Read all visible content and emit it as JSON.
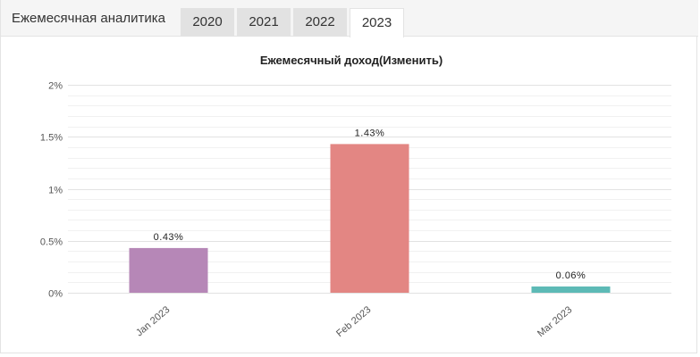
{
  "tabs": {
    "title": "Ежемесячная аналитика",
    "items": [
      {
        "label": "2020",
        "active": false
      },
      {
        "label": "2021",
        "active": false
      },
      {
        "label": "2022",
        "active": false
      },
      {
        "label": "2023",
        "active": true
      }
    ]
  },
  "chart_data": {
    "type": "bar",
    "title": "Ежемесячный доход(Изменить)",
    "categories": [
      "Jan 2023",
      "Feb 2023",
      "Mar 2023"
    ],
    "values": [
      0.43,
      1.43,
      0.06
    ],
    "data_labels": [
      "0.43%",
      "1.43%",
      "0.06%"
    ],
    "colors": [
      "#b687b7",
      "#e38683",
      "#5dbab6"
    ],
    "ylim": [
      0,
      2
    ],
    "yticks": [
      {
        "value": 0,
        "label": "0%"
      },
      {
        "value": 0.5,
        "label": "0.5%"
      },
      {
        "value": 1,
        "label": "1%"
      },
      {
        "value": 1.5,
        "label": "1.5%"
      },
      {
        "value": 2,
        "label": "2%"
      }
    ],
    "minor_gridlines": true,
    "legend": "none"
  }
}
